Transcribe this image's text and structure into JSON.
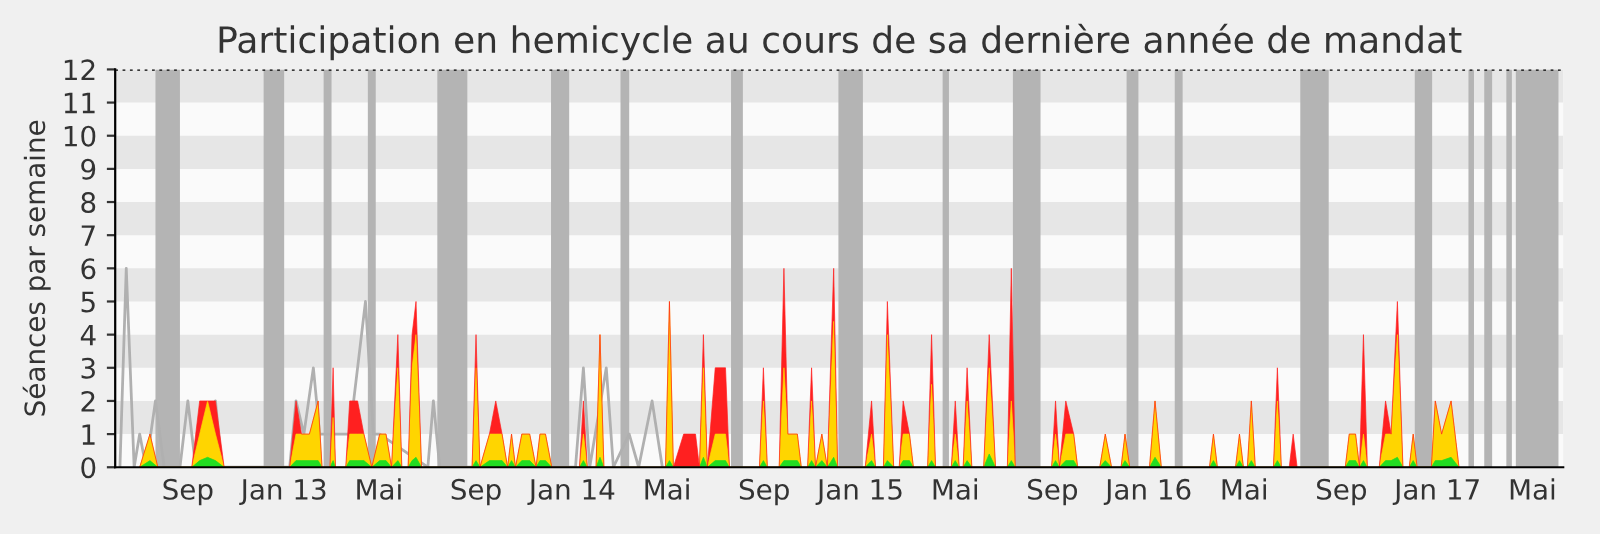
{
  "chart_data": {
    "type": "area",
    "title": "Participation en hemicycle au cours de sa dernière année de mandat",
    "ylabel": "Séances par semaine",
    "xlim": [
      "2012-06-01",
      "2017-06-09"
    ],
    "ylim": [
      0,
      12
    ],
    "yticks": [
      0,
      1,
      2,
      3,
      4,
      5,
      6,
      7,
      8,
      9,
      10,
      11,
      12
    ],
    "xticks": [
      {
        "value": "2012-09-01",
        "label": "Sep"
      },
      {
        "value": "2013-01-01",
        "label": "Jan 13"
      },
      {
        "value": "2013-05-01",
        "label": "Mai"
      },
      {
        "value": "2013-09-01",
        "label": "Sep"
      },
      {
        "value": "2014-01-01",
        "label": "Jan 14"
      },
      {
        "value": "2014-05-01",
        "label": "Mai"
      },
      {
        "value": "2014-09-01",
        "label": "Sep"
      },
      {
        "value": "2015-01-01",
        "label": "Jan 15"
      },
      {
        "value": "2015-05-01",
        "label": "Mai"
      },
      {
        "value": "2015-09-01",
        "label": "Sep"
      },
      {
        "value": "2016-01-01",
        "label": "Jan 16"
      },
      {
        "value": "2016-05-01",
        "label": "Mai"
      },
      {
        "value": "2016-09-01",
        "label": "Sep"
      },
      {
        "value": "2017-01-01",
        "label": "Jan 17"
      },
      {
        "value": "2017-05-01",
        "label": "Mai"
      }
    ],
    "grid": false,
    "x": [
      "2012-07-02",
      "2012-07-15",
      "2012-07-25",
      "2012-09-06",
      "2012-09-16",
      "2012-09-26",
      "2012-10-06",
      "2012-10-17",
      "2013-01-08",
      "2013-01-16",
      "2013-01-23",
      "2013-02-02",
      "2013-02-13",
      "2013-02-18",
      "2013-02-28",
      "2013-03-04",
      "2013-03-07",
      "2013-03-20",
      "2013-03-25",
      "2013-04-04",
      "2013-04-12",
      "2013-04-22",
      "2013-05-02",
      "2013-05-10",
      "2013-05-17",
      "2013-05-25",
      "2013-05-30",
      "2013-06-07",
      "2013-06-12",
      "2013-06-17",
      "2013-06-24",
      "2013-08-27",
      "2013-09-01",
      "2013-09-06",
      "2013-09-18",
      "2013-09-26",
      "2013-10-04",
      "2013-10-11",
      "2013-10-16",
      "2013-10-21",
      "2013-10-29",
      "2013-11-08",
      "2013-11-16",
      "2013-11-21",
      "2013-11-28",
      "2013-12-06",
      "2014-01-10",
      "2014-01-15",
      "2014-01-20",
      "2014-01-31",
      "2014-02-05",
      "2014-02-10",
      "2014-04-29",
      "2014-05-04",
      "2014-05-09",
      "2014-05-22",
      "2014-06-06",
      "2014-06-11",
      "2014-06-16",
      "2014-06-21",
      "2014-07-01",
      "2014-07-14",
      "2014-07-19",
      "2014-08-26",
      "2014-08-31",
      "2014-09-05",
      "2014-09-20",
      "2014-09-26",
      "2014-10-01",
      "2014-10-13",
      "2014-10-18",
      "2014-10-26",
      "2014-10-31",
      "2014-11-05",
      "2014-11-13",
      "2014-11-20",
      "2014-11-28",
      "2014-12-03",
      "2015-01-07",
      "2015-01-15",
      "2015-01-20",
      "2015-01-30",
      "2015-02-04",
      "2015-02-12",
      "2015-02-19",
      "2015-02-24",
      "2015-03-04",
      "2015-03-09",
      "2015-03-27",
      "2015-04-01",
      "2015-04-06",
      "2015-04-26",
      "2015-05-01",
      "2015-05-06",
      "2015-05-11",
      "2015-05-16",
      "2015-05-22",
      "2015-06-06",
      "2015-06-13",
      "2015-06-21",
      "2015-07-06",
      "2015-07-11",
      "2015-07-16",
      "2015-08-31",
      "2015-09-05",
      "2015-09-10",
      "2015-09-18",
      "2015-09-28",
      "2015-10-03",
      "2015-10-31",
      "2015-11-07",
      "2015-11-15",
      "2015-11-27",
      "2015-12-02",
      "2015-12-08",
      "2016-01-02",
      "2016-01-09",
      "2016-01-17",
      "2016-03-18",
      "2016-03-23",
      "2016-03-28",
      "2016-04-20",
      "2016-04-25",
      "2016-04-30",
      "2016-05-05",
      "2016-05-10",
      "2016-05-15",
      "2016-06-07",
      "2016-06-12",
      "2016-06-17",
      "2016-06-27",
      "2016-07-02",
      "2016-07-07",
      "2016-09-06",
      "2016-09-11",
      "2016-09-19",
      "2016-09-24",
      "2016-09-29",
      "2016-10-04",
      "2016-10-19",
      "2016-10-27",
      "2016-11-03",
      "2016-11-11",
      "2016-11-18",
      "2016-11-26",
      "2016-12-01",
      "2016-12-06",
      "2016-12-24",
      "2016-12-29",
      "2017-01-06",
      "2017-01-18",
      "2017-01-28"
    ],
    "series": [
      {
        "color": "#ff2020",
        "values": [
          0,
          1,
          0,
          0,
          2,
          2,
          2,
          0,
          0,
          2,
          1,
          1,
          2,
          0,
          0,
          3,
          0,
          0,
          2,
          2,
          1,
          0,
          1,
          1,
          0,
          4,
          0,
          0,
          4,
          5,
          0,
          0,
          4,
          0,
          1,
          2,
          1,
          0,
          1,
          0,
          1,
          1,
          0,
          1,
          1,
          0,
          0,
          2,
          0,
          0,
          4,
          0,
          0,
          5,
          0,
          1,
          1,
          0,
          4,
          0,
          3,
          3,
          0,
          0,
          3,
          0,
          0,
          6,
          1,
          1,
          0,
          0,
          3,
          0,
          1,
          0,
          6,
          0,
          0,
          2,
          0,
          0,
          5,
          0,
          0,
          2,
          1,
          0,
          0,
          4,
          0,
          0,
          2,
          0,
          0,
          3,
          0,
          0,
          4,
          0,
          0,
          6,
          0,
          0,
          2,
          0,
          2,
          1,
          0,
          0,
          1,
          0,
          0,
          1,
          0,
          0,
          2,
          0,
          0,
          1,
          0,
          0,
          1,
          0,
          0,
          2,
          0,
          0,
          3,
          0,
          0,
          1,
          0,
          0,
          1,
          1,
          0,
          4,
          0,
          0,
          2,
          1,
          5,
          0,
          0,
          1,
          0,
          0,
          2,
          1,
          2,
          0
        ]
      },
      {
        "color": "#ffd500",
        "values": [
          0,
          1,
          0,
          0,
          1,
          2,
          1,
          0,
          0,
          1,
          1,
          1,
          2,
          0,
          0,
          1.5,
          0,
          0,
          1,
          1,
          1,
          0,
          1,
          1,
          0,
          3,
          0,
          0,
          3,
          4,
          0,
          0,
          3,
          0,
          1,
          1,
          1,
          0,
          1,
          0,
          1,
          1,
          0,
          1,
          1,
          0,
          0,
          1,
          0,
          0,
          4,
          0,
          0,
          5,
          0,
          0,
          0,
          0,
          3,
          0,
          1,
          1,
          0,
          0,
          2,
          0,
          0,
          3,
          1,
          1,
          0,
          0,
          2,
          0,
          1,
          0,
          4.4,
          0,
          0,
          1,
          0,
          0,
          4,
          0,
          0,
          1,
          1,
          0,
          0,
          2.5,
          0,
          0,
          1,
          0,
          0,
          2,
          0,
          0,
          3,
          0,
          0,
          2,
          0,
          0,
          1,
          0,
          1,
          1,
          0,
          0,
          1,
          0,
          0,
          1,
          0,
          0,
          2,
          0,
          0,
          1,
          0,
          0,
          1,
          0,
          0,
          2,
          0,
          0,
          2,
          0,
          0,
          0,
          0,
          0,
          1,
          1,
          0,
          1,
          0,
          0,
          1,
          1,
          4,
          0,
          0,
          1,
          0,
          0,
          2,
          1,
          2,
          0
        ]
      },
      {
        "color": "#22dd22",
        "values": [
          0,
          0.2,
          0,
          0,
          0.2,
          0.3,
          0.2,
          0,
          0,
          0.2,
          0.2,
          0.2,
          0.2,
          0,
          0,
          0.2,
          0,
          0,
          0.2,
          0.2,
          0.2,
          0,
          0.2,
          0.2,
          0,
          0.2,
          0,
          0,
          0.2,
          0.3,
          0,
          0,
          0.2,
          0,
          0.2,
          0.2,
          0.2,
          0,
          0.2,
          0,
          0.2,
          0.2,
          0,
          0.2,
          0.2,
          0,
          0,
          0.2,
          0,
          0,
          0.3,
          0,
          0,
          0.2,
          0,
          0,
          0,
          0,
          0.3,
          0,
          0.2,
          0.2,
          0,
          0,
          0.2,
          0,
          0,
          0.2,
          0.2,
          0.2,
          0,
          0,
          0.2,
          0,
          0.2,
          0,
          0.3,
          0,
          0,
          0.2,
          0,
          0,
          0.2,
          0,
          0,
          0.2,
          0.2,
          0,
          0,
          0.2,
          0,
          0,
          0.2,
          0,
          0,
          0.2,
          0,
          0,
          0.4,
          0,
          0,
          0.2,
          0,
          0,
          0.2,
          0,
          0.2,
          0.2,
          0,
          0,
          0.2,
          0,
          0,
          0.2,
          0,
          0,
          0.3,
          0,
          0,
          0.2,
          0,
          0,
          0.2,
          0,
          0,
          0.2,
          0,
          0,
          0.2,
          0,
          0,
          0,
          0,
          0,
          0.2,
          0.2,
          0,
          0.2,
          0,
          0,
          0.2,
          0.2,
          0.3,
          0,
          0,
          0.2,
          0,
          0,
          0.2,
          0.2,
          0.3,
          0
        ]
      },
      {
        "type": "line",
        "color": "#b0b0b0",
        "x": [
          "2012-06-07",
          "2012-06-15",
          "2012-06-25",
          "2012-07-02",
          "2012-07-10",
          "2012-07-22",
          "2012-08-02",
          "2012-08-22",
          "2012-09-01",
          "2012-09-11",
          "2012-10-06",
          "2012-10-14",
          "2013-01-08",
          "2013-01-16",
          "2013-01-26",
          "2013-02-07",
          "2013-02-15",
          "2013-03-25",
          "2013-04-14",
          "2013-04-24",
          "2013-05-02",
          "2013-07-02",
          "2013-07-09",
          "2013-07-17",
          "2014-01-05",
          "2014-01-15",
          "2014-01-23",
          "2014-02-13",
          "2014-02-22",
          "2014-03-14",
          "2014-03-26",
          "2014-04-12",
          "2014-04-25"
        ],
        "values": [
          0,
          6,
          0,
          1,
          0,
          2,
          0,
          0,
          2,
          0,
          2,
          0,
          0,
          2,
          1,
          3,
          1,
          1,
          5,
          1,
          1,
          0,
          2,
          0,
          0,
          3,
          0,
          3,
          0,
          1,
          0,
          2,
          0
        ]
      }
    ],
    "bands": [
      {
        "axis": "y",
        "from": 1,
        "to": 2,
        "color": "#e6e6e6"
      },
      {
        "axis": "y",
        "from": 3,
        "to": 4,
        "color": "#e6e6e6"
      },
      {
        "axis": "y",
        "from": 5,
        "to": 6,
        "color": "#e6e6e6"
      },
      {
        "axis": "y",
        "from": 7,
        "to": 8,
        "color": "#e6e6e6"
      },
      {
        "axis": "y",
        "from": 9,
        "to": 10,
        "color": "#e6e6e6"
      },
      {
        "axis": "y",
        "from": 11,
        "to": 12,
        "color": "#e6e6e6"
      },
      {
        "axis": "x",
        "from": "2012-07-22",
        "to": "2012-08-22",
        "color": "#b4b4b4"
      },
      {
        "axis": "x",
        "from": "2012-12-06",
        "to": "2013-01-01",
        "color": "#b4b4b4"
      },
      {
        "axis": "x",
        "from": "2013-02-20",
        "to": "2013-03-02",
        "color": "#b4b4b4"
      },
      {
        "axis": "x",
        "from": "2013-04-17",
        "to": "2013-04-27",
        "color": "#b4b4b4"
      },
      {
        "axis": "x",
        "from": "2013-07-14",
        "to": "2013-08-21",
        "color": "#b4b4b4"
      },
      {
        "axis": "x",
        "from": "2013-12-05",
        "to": "2013-12-28",
        "color": "#b4b4b4"
      },
      {
        "axis": "x",
        "from": "2014-03-03",
        "to": "2014-03-14",
        "color": "#b4b4b4"
      },
      {
        "axis": "x",
        "from": "2014-07-21",
        "to": "2014-08-05",
        "color": "#b4b4b4"
      },
      {
        "axis": "x",
        "from": "2014-12-04",
        "to": "2015-01-04",
        "color": "#b4b4b4"
      },
      {
        "axis": "x",
        "from": "2015-04-15",
        "to": "2015-04-23",
        "color": "#b4b4b4"
      },
      {
        "axis": "x",
        "from": "2015-07-13",
        "to": "2015-08-17",
        "color": "#b4b4b4"
      },
      {
        "axis": "x",
        "from": "2015-12-04",
        "to": "2015-12-19",
        "color": "#b4b4b4"
      },
      {
        "axis": "x",
        "from": "2016-02-03",
        "to": "2016-02-13",
        "color": "#b4b4b4"
      },
      {
        "axis": "x",
        "from": "2016-07-11",
        "to": "2016-08-16",
        "color": "#b4b4b4"
      },
      {
        "axis": "x",
        "from": "2016-12-03",
        "to": "2016-12-25",
        "color": "#b4b4b4"
      },
      {
        "axis": "x",
        "from": "2017-02-09",
        "to": "2017-02-16",
        "color": "#b4b4b4"
      },
      {
        "axis": "x",
        "from": "2017-03-01",
        "to": "2017-03-11",
        "color": "#b4b4b4"
      },
      {
        "axis": "x",
        "from": "2017-03-29",
        "to": "2017-04-05",
        "color": "#b4b4b4"
      },
      {
        "axis": "x",
        "from": "2017-04-10",
        "to": "2017-06-03",
        "color": "#b4b4b4"
      }
    ],
    "ref_lines": [
      {
        "axis": "y",
        "value": 12,
        "color": "#000000",
        "line_style": "dotted"
      }
    ]
  }
}
